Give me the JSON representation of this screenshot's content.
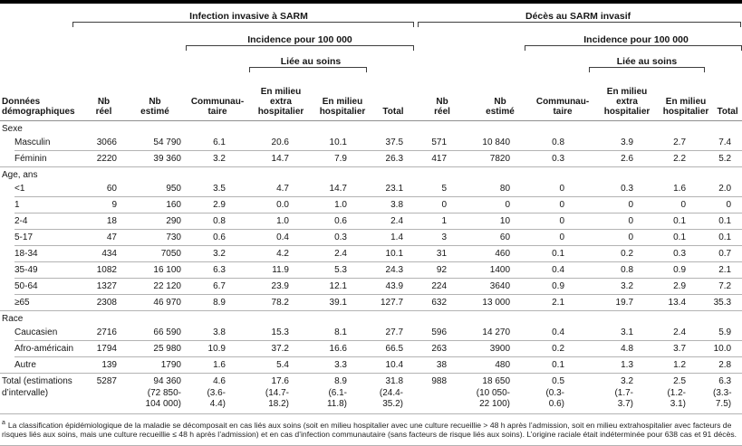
{
  "colors": {
    "top_bar": "#000000",
    "rule_light": "#b3b3b3",
    "rule_dark": "#8f8f8f",
    "bracket": "#3e3e3e"
  },
  "table": {
    "header": {
      "section_left": "Infection invasive à SARM",
      "section_right": "Décès au SARM invasif",
      "incidence": "Incidence pour 100 000",
      "liee": "Liée au soins",
      "cols": {
        "demographics": "Données\ndémographiques",
        "nb_reel": "Nb\nréel",
        "nb_estime": "Nb\nestimé",
        "communautaire": "Communau-\ntaire",
        "extra": "En milieu\nextra\nhospitalier",
        "hospitalier": "En milieu\nhospitalier",
        "total": "Total"
      }
    },
    "groups": [
      {
        "label": "Sexe",
        "rows": [
          {
            "label": "Masculin",
            "values": [
              "3066",
              "54 790",
              "6.1",
              "20.6",
              "10.1",
              "37.5",
              "571",
              "10 840",
              "0.8",
              "3.9",
              "2.7",
              "7.4"
            ]
          },
          {
            "label": "Féminin",
            "values": [
              "2220",
              "39 360",
              "3.2",
              "14.7",
              "7.9",
              "26.3",
              "417",
              "7820",
              "0.3",
              "2.6",
              "2.2",
              "5.2"
            ]
          }
        ]
      },
      {
        "label": "Age, ans",
        "rows": [
          {
            "label": "<1",
            "values": [
              "60",
              "950",
              "3.5",
              "4.7",
              "14.7",
              "23.1",
              "5",
              "80",
              "0",
              "0.3",
              "1.6",
              "2.0"
            ]
          },
          {
            "label": "1",
            "values": [
              "9",
              "160",
              "2.9",
              "0.0",
              "1.0",
              "3.8",
              "0",
              "0",
              "0",
              "0",
              "0",
              "0"
            ]
          },
          {
            "label": "2-4",
            "values": [
              "18",
              "290",
              "0.8",
              "1.0",
              "0.6",
              "2.4",
              "1",
              "10",
              "0",
              "0",
              "0.1",
              "0.1"
            ]
          },
          {
            "label": "5-17",
            "values": [
              "47",
              "730",
              "0.6",
              "0.4",
              "0.3",
              "1.4",
              "3",
              "60",
              "0",
              "0",
              "0.1",
              "0.1"
            ]
          },
          {
            "label": "18-34",
            "values": [
              "434",
              "7050",
              "3.2",
              "4.2",
              "2.4",
              "10.1",
              "31",
              "460",
              "0.1",
              "0.2",
              "0.3",
              "0.7"
            ]
          },
          {
            "label": "35-49",
            "values": [
              "1082",
              "16 100",
              "6.3",
              "11.9",
              "5.3",
              "24.3",
              "92",
              "1400",
              "0.4",
              "0.8",
              "0.9",
              "2.1"
            ]
          },
          {
            "label": "50-64",
            "values": [
              "1327",
              "22 120",
              "6.7",
              "23.9",
              "12.1",
              "43.9",
              "224",
              "3640",
              "0.9",
              "3.2",
              "2.9",
              "7.2"
            ]
          },
          {
            "label": "≥65",
            "values": [
              "2308",
              "46 970",
              "8.9",
              "78.2",
              "39.1",
              "127.7",
              "632",
              "13 000",
              "2.1",
              "19.7",
              "13.4",
              "35.3"
            ]
          }
        ]
      },
      {
        "label": "Race",
        "rows": [
          {
            "label": "Caucasien",
            "values": [
              "2716",
              "66 590",
              "3.8",
              "15.3",
              "8.1",
              "27.7",
              "596",
              "14 270",
              "0.4",
              "3.1",
              "2.4",
              "5.9"
            ]
          },
          {
            "label": "Afro-américain",
            "values": [
              "1794",
              "25 980",
              "10.9",
              "37.2",
              "16.6",
              "66.5",
              "263",
              "3900",
              "0.2",
              "4.8",
              "3.7",
              "10.0"
            ]
          },
          {
            "label": "Autre",
            "values": [
              "139",
              "1790",
              "1.6",
              "5.4",
              "3.3",
              "10.4",
              "38",
              "480",
              "0.1",
              "1.3",
              "1.2",
              "2.8"
            ]
          }
        ]
      }
    ],
    "total_row": {
      "label": "Total (estimations\nd’intervalle)",
      "values": [
        "5287",
        "94 360\n(72 850-\n104 000)",
        "4.6\n(3.6-\n4.4)",
        "17.6\n(14.7-\n18.2)",
        "8.9\n(6.1-\n11.8)",
        "31.8\n(24.4-\n35.2)",
        "988",
        "18 650\n(10 050-\n22 100)",
        "0.5\n(0.3-\n0.6)",
        "3.2\n(1.7-\n3.7)",
        "2.5\n(1.2-\n3.1)",
        "6.3\n(3.3-\n7.5)"
      ]
    }
  },
  "footnote": {
    "marker": "a",
    "text": "La classification épidémiologique de la maladie se décomposait en cas liés aux soins (soit en milieu hospitalier avec une culture recueillie > 48 h après l’admission, soit en milieu extrahospitalier avec facteurs de risques liés aux soins, mais une culture recueillie ≤ 48 h après l’admission) et en cas d’infection communautaire (sans facteurs de risque liés aux soins). L’origine raciale était indéterminée pour 638 cas et 91 décès."
  }
}
